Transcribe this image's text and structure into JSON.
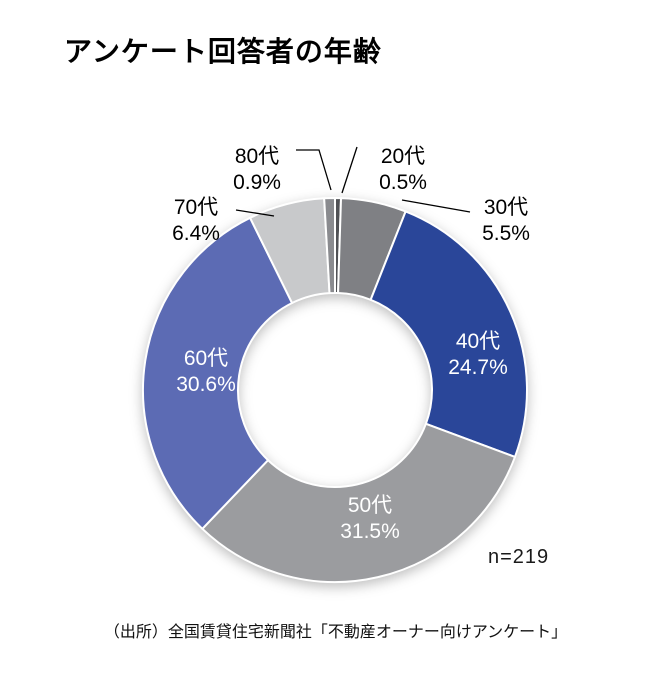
{
  "page": {
    "background": "#ffffff"
  },
  "header": {
    "title": "アンケート回答者の年齢"
  },
  "chart_data": {
    "type": "pie",
    "donut": true,
    "title": "アンケート回答者の年齢",
    "start_angle_deg": 0,
    "direction": "clockwise",
    "categories": [
      "20代",
      "30代",
      "40代",
      "50代",
      "60代",
      "70代",
      "80代"
    ],
    "values": [
      0.5,
      5.5,
      24.7,
      31.5,
      30.6,
      6.4,
      0.9
    ],
    "unit": "%",
    "colors": [
      "#515256",
      "#7f8084",
      "#2a4699",
      "#9b9c9f",
      "#5c6bb4",
      "#c8c9cb",
      "#8a8b8f"
    ],
    "label_color_inside": "#ffffff",
    "label_color_outside": "#000000",
    "inside_label_categories": [
      "40代",
      "50代",
      "60代"
    ],
    "n_label": "n=219",
    "source": "（出所）全国賃貸住宅新聞社「不動産オーナー向けアンケート」",
    "legend": "none"
  }
}
